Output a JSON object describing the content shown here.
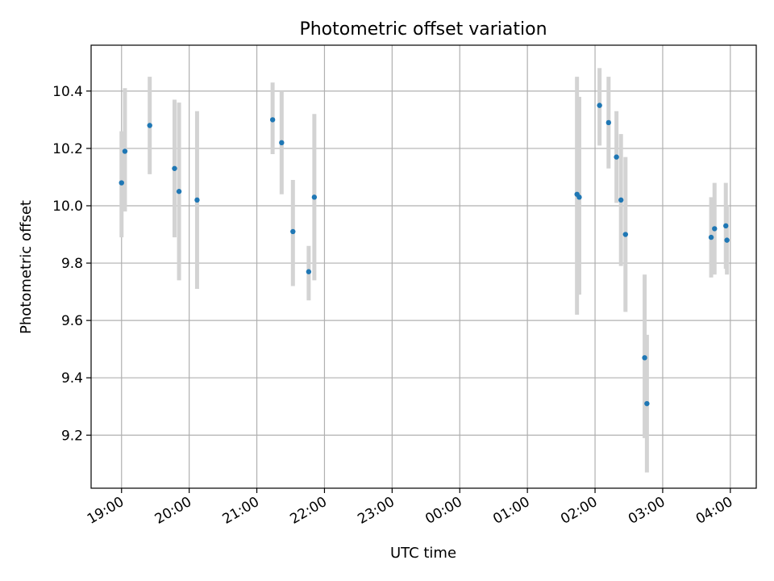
{
  "chart_data": {
    "type": "scatter",
    "title": "Photometric offset variation",
    "xlabel": "UTC time",
    "ylabel": "Photometric offset",
    "x_is_time": true,
    "x_reference_date": "2000-01-01",
    "xlim": [
      "18:33",
      "04:23+1"
    ],
    "ylim": [
      9.015,
      10.56
    ],
    "grid": true,
    "x_ticks": [
      "19:00",
      "20:00",
      "21:00",
      "22:00",
      "23:00",
      "00:00",
      "01:00",
      "02:00",
      "03:00",
      "04:00"
    ],
    "y_ticks": [
      9.2,
      9.4,
      9.6,
      9.8,
      10.0,
      10.2,
      10.4
    ],
    "y_tick_labels": [
      "9.2",
      "9.4",
      "9.6",
      "9.8",
      "10.0",
      "10.2",
      "10.4"
    ],
    "colors": {
      "point": "#1f77b4",
      "errorbar": "#d3d3d3",
      "grid": "#b0b0b0"
    },
    "series": [
      {
        "points": [
          {
            "t": "19:00",
            "y": 10.08,
            "err_low": 9.89,
            "err_high": 10.26
          },
          {
            "t": "19:03",
            "y": 10.19,
            "err_low": 9.98,
            "err_high": 10.41
          },
          {
            "t": "19:25",
            "y": 10.28,
            "err_low": 10.11,
            "err_high": 10.45
          },
          {
            "t": "19:47",
            "y": 10.13,
            "err_low": 9.89,
            "err_high": 10.37
          },
          {
            "t": "19:51",
            "y": 10.05,
            "err_low": 9.74,
            "err_high": 10.36
          },
          {
            "t": "20:07",
            "y": 10.02,
            "err_low": 9.71,
            "err_high": 10.33
          },
          {
            "t": "21:14",
            "y": 10.3,
            "err_low": 10.18,
            "err_high": 10.43
          },
          {
            "t": "21:22",
            "y": 10.22,
            "err_low": 10.04,
            "err_high": 10.4
          },
          {
            "t": "21:32",
            "y": 9.91,
            "err_low": 9.72,
            "err_high": 10.09
          },
          {
            "t": "21:46",
            "y": 9.77,
            "err_low": 9.67,
            "err_high": 9.86
          },
          {
            "t": "21:51",
            "y": 10.03,
            "err_low": 9.74,
            "err_high": 10.32
          },
          {
            "t": "01:44+1",
            "y": 10.04,
            "err_low": 9.62,
            "err_high": 10.45
          },
          {
            "t": "01:46+1",
            "y": 10.03,
            "err_low": 9.69,
            "err_high": 10.38
          },
          {
            "t": "02:04+1",
            "y": 10.35,
            "err_low": 10.21,
            "err_high": 10.48
          },
          {
            "t": "02:12+1",
            "y": 10.29,
            "err_low": 10.13,
            "err_high": 10.45
          },
          {
            "t": "02:19+1",
            "y": 10.17,
            "err_low": 10.01,
            "err_high": 10.33
          },
          {
            "t": "02:23+1",
            "y": 10.02,
            "err_low": 9.79,
            "err_high": 10.25
          },
          {
            "t": "02:27+1",
            "y": 9.9,
            "err_low": 9.63,
            "err_high": 10.17
          },
          {
            "t": "02:44+1",
            "y": 9.47,
            "err_low": 9.19,
            "err_high": 9.76
          },
          {
            "t": "02:46+1",
            "y": 9.31,
            "err_low": 9.07,
            "err_high": 9.55
          },
          {
            "t": "03:43+1",
            "y": 9.89,
            "err_low": 9.75,
            "err_high": 10.03
          },
          {
            "t": "03:46+1",
            "y": 9.92,
            "err_low": 9.76,
            "err_high": 10.08
          },
          {
            "t": "03:56+1",
            "y": 9.93,
            "err_low": 9.78,
            "err_high": 10.08
          },
          {
            "t": "03:57+1",
            "y": 9.88,
            "err_low": 9.76,
            "err_high": 10.0
          }
        ]
      }
    ]
  }
}
